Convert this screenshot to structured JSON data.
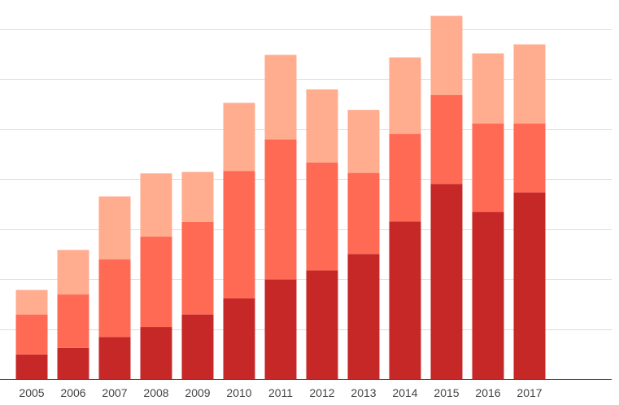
{
  "chart_data": {
    "type": "bar",
    "stacked": true,
    "title": "",
    "xlabel": "",
    "ylabel": "",
    "categories": [
      "2005",
      "2006",
      "2007",
      "2008",
      "2009",
      "2010",
      "2011",
      "2012",
      "2013",
      "2014",
      "2015",
      "2016",
      "2017"
    ],
    "ylim": [
      0,
      7.5
    ],
    "gridlines": [
      1,
      2,
      3,
      4,
      5,
      6,
      7
    ],
    "grid": true,
    "y_tick_labels_shown": false,
    "series": [
      {
        "color": "#c62828",
        "values": [
          0.49,
          0.62,
          0.84,
          1.04,
          1.29,
          1.61,
          1.99,
          2.17,
          2.5,
          3.15,
          3.9,
          3.34,
          3.73
        ]
      },
      {
        "color": "#ff6a55",
        "values": [
          0.8,
          1.07,
          1.55,
          1.81,
          1.85,
          2.55,
          2.8,
          2.16,
          1.62,
          1.75,
          1.78,
          1.77,
          1.38
        ]
      },
      {
        "color": "#ffac8f",
        "values": [
          0.49,
          0.89,
          1.26,
          1.26,
          1.0,
          1.36,
          1.69,
          1.46,
          1.26,
          1.53,
          1.58,
          1.4,
          1.58
        ]
      }
    ]
  }
}
